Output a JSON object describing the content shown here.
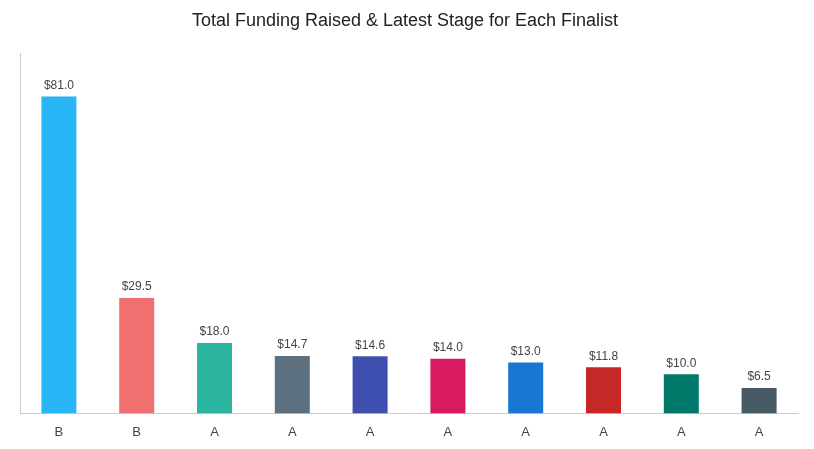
{
  "chart_data": {
    "type": "bar",
    "title": "Total Funding Raised & Latest Stage for Each Finalist",
    "categories": [
      "B",
      "B",
      "A",
      "A",
      "A",
      "A",
      "A",
      "A",
      "A",
      "A"
    ],
    "values": [
      81.0,
      29.5,
      18.0,
      14.7,
      14.6,
      14.0,
      13.0,
      11.8,
      10.0,
      6.5
    ],
    "value_labels": [
      "$81.0",
      "$29.5",
      "$18.0",
      "$14.7",
      "$14.6",
      "$14.0",
      "$13.0",
      "$11.8",
      "$10.0",
      "$6.5"
    ],
    "colors": [
      "#29B6F6",
      "#F07070",
      "#2BB5A0",
      "#5D7080",
      "#3F4FAF",
      "#D81B60",
      "#1976D2",
      "#C62828",
      "#00796B",
      "#455A64"
    ],
    "ylim": [
      0,
      92
    ],
    "grid": false,
    "data_labels": true,
    "tick_labels": "x"
  }
}
